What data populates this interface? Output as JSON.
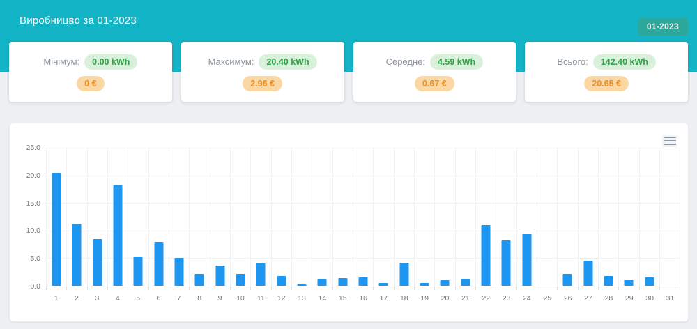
{
  "header": {
    "title": "Виробницво за 01-2023",
    "period_badge": "01-2023"
  },
  "stats": {
    "cards": [
      {
        "label": "Мінімум:",
        "kwh": "0.00 kWh",
        "eur": "0 €"
      },
      {
        "label": "Максимум:",
        "kwh": "20.40 kWh",
        "eur": "2.96 €"
      },
      {
        "label": "Середне:",
        "kwh": "4.59 kWh",
        "eur": "0.67 €"
      },
      {
        "label": "Всього:",
        "kwh": "142.40 kWh",
        "eur": "20.65 €"
      }
    ]
  },
  "colors": {
    "header_teal": "#13b4c5",
    "badge_teal": "#2da89d",
    "bar_blue": "#1d96f2",
    "kwh_pill_bg": "#d9f1da",
    "kwh_pill_text": "#33a049",
    "eur_pill_bg": "#fbd8a3",
    "eur_pill_text": "#ec8d21"
  },
  "chart": {
    "menu_icon": "hamburger-menu-icon"
  },
  "chart_data": {
    "type": "bar",
    "title": "Виробницво за 01-2023",
    "unit": "kWh",
    "categories": [
      1,
      2,
      3,
      4,
      5,
      6,
      7,
      8,
      9,
      10,
      11,
      12,
      13,
      14,
      15,
      16,
      17,
      18,
      19,
      20,
      21,
      22,
      23,
      24,
      25,
      26,
      27,
      28,
      29,
      30,
      31
    ],
    "values": [
      20.4,
      11.3,
      8.5,
      18.2,
      5.3,
      8.0,
      5.1,
      2.1,
      3.7,
      2.2,
      4.0,
      1.8,
      0.3,
      1.3,
      1.4,
      1.5,
      0.5,
      4.2,
      0.5,
      1.0,
      1.3,
      11.0,
      8.2,
      9.5,
      0,
      2.1,
      4.5,
      1.8,
      1.2,
      1.5,
      0
    ],
    "total": 142.4,
    "max": 20.4,
    "min": 0.0,
    "average": 4.59,
    "xlabel": "",
    "ylabel": "",
    "ylim": [
      0,
      25
    ],
    "yticks": [
      0,
      5,
      10,
      15,
      20,
      25
    ],
    "ytick_labels": [
      "0.0",
      "5.0",
      "10.0",
      "15.0",
      "20.0",
      "25.0"
    ],
    "grid": true,
    "legend_position": "none",
    "bar_color": "#1d96f2"
  }
}
